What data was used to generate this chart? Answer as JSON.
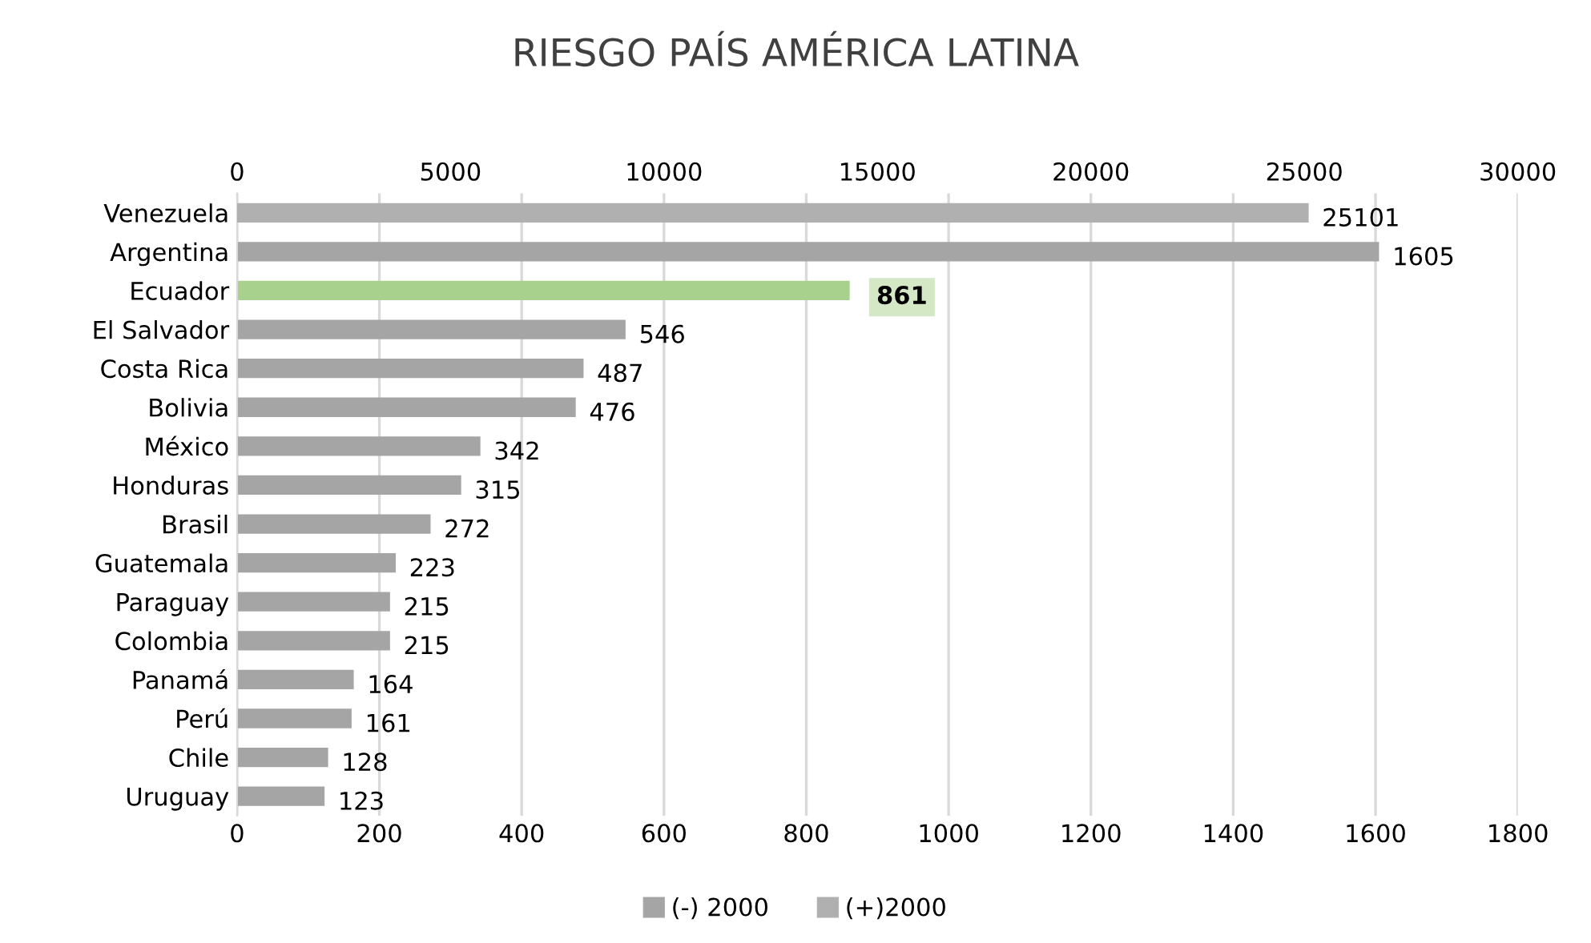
{
  "chart_data": {
    "type": "bar",
    "orientation": "horizontal",
    "title": "RIESGO PAÍS AMÉRICA LATINA",
    "categories": [
      "Venezuela",
      "Argentina",
      "Ecuador",
      "El Salvador",
      "Costa Rica",
      "Bolivia",
      "México",
      "Honduras",
      "Brasil",
      "Guatemala",
      "Paraguay",
      "Colombia",
      "Panamá",
      "Perú",
      "Chile",
      "Uruguay"
    ],
    "series": [
      {
        "name": "(-) 2000",
        "color": "#a5a5a5",
        "colors": [
          "#a5a5a5",
          "#a5a5a5",
          "#a9d18e",
          "#a5a5a5",
          "#a5a5a5",
          "#a5a5a5",
          "#a5a5a5",
          "#a5a5a5",
          "#a5a5a5",
          "#a5a5a5",
          "#a5a5a5",
          "#a5a5a5",
          "#a5a5a5",
          "#a5a5a5",
          "#a5a5a5",
          "#a5a5a5"
        ],
        "values": [
          null,
          1605,
          861,
          546,
          487,
          476,
          342,
          315,
          272,
          223,
          215,
          215,
          164,
          161,
          128,
          123
        ]
      },
      {
        "name": "(+)2000",
        "color": "#b0b0b0",
        "axis": "x2",
        "values": [
          25101,
          null,
          null,
          null,
          null,
          null,
          null,
          null,
          null,
          null,
          null,
          null,
          null,
          null,
          null,
          null
        ]
      }
    ],
    "xlim": [
      0,
      1800
    ],
    "xticks": [
      0,
      200,
      400,
      600,
      800,
      1000,
      1200,
      1400,
      1600,
      1800
    ],
    "x2lim": [
      0,
      30000
    ],
    "x2ticks": [
      0,
      5000,
      10000,
      15000,
      20000,
      25000,
      30000
    ],
    "data_labels": true,
    "grid": "x",
    "legend": "bottom"
  }
}
